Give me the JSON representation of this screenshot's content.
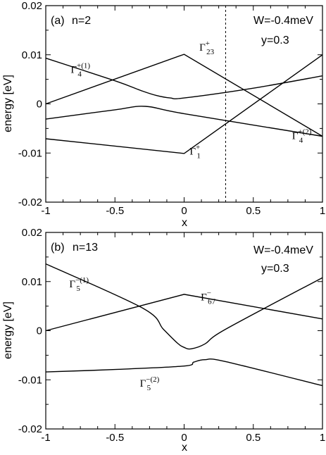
{
  "chart_data": [
    {
      "type": "line",
      "panel_label": "(a)",
      "n_label": "n=2",
      "params": [
        "W=-0.4meV",
        "y=0.3"
      ],
      "xlabel": "x",
      "ylabel": "energy [eV]",
      "xlim": [
        -1,
        1
      ],
      "ylim": [
        -0.02,
        0.02
      ],
      "xticks": [
        -1,
        -0.5,
        0,
        0.5,
        1
      ],
      "xtick_labels": [
        "-1",
        "-0.5",
        "0",
        "0.5",
        "1"
      ],
      "yticks": [
        -0.02,
        -0.01,
        0,
        0.01,
        0.02
      ],
      "ytick_labels": [
        "-0.02",
        "-0.01",
        "0",
        "0.01",
        "0.02"
      ],
      "vline_x": 0.3,
      "series": [
        {
          "x": [
            -1,
            0,
            1
          ],
          "y": [
            0.0,
            0.0101,
            -0.0066
          ]
        },
        {
          "x": [
            -1,
            -0.5,
            -0.28,
            0,
            1
          ],
          "y": [
            -0.0031,
            -0.0012,
            -0.0005,
            -0.002,
            -0.0066
          ]
        },
        {
          "x": [
            -1,
            0,
            1
          ],
          "y": [
            -0.0071,
            -0.0101,
            0.01
          ]
        },
        {
          "x": [
            -1,
            -0.5,
            -0.3,
            -0.2,
            -0.1,
            0,
            0.5,
            1
          ],
          "y": [
            0.0093,
            0.0047,
            0.0026,
            0.0017,
            0.0012,
            0.0012,
            0.0032,
            0.0057
          ]
        }
      ],
      "labels": [
        {
          "text": "Γ",
          "sup": "+(1)",
          "sub": "4",
          "x": -0.82,
          "y": 0.0063
        },
        {
          "text": "Γ",
          "sup": "+",
          "sub": "23",
          "x": 0.11,
          "y": 0.0108
        },
        {
          "text": "Γ",
          "sup": "+(2)",
          "sub": "4",
          "x": 0.78,
          "y": -0.0072
        },
        {
          "text": "Γ",
          "sup": "+",
          "sub": "1",
          "x": 0.04,
          "y": -0.0103
        }
      ]
    },
    {
      "type": "line",
      "panel_label": "(b)",
      "n_label": "n=13",
      "params": [
        "W=-0.4meV",
        "y=0.3"
      ],
      "xlabel": "x",
      "ylabel": "energy [eV]",
      "xlim": [
        -1,
        1
      ],
      "ylim": [
        -0.02,
        0.02
      ],
      "xticks": [
        -1,
        -0.5,
        0,
        0.5,
        1
      ],
      "xtick_labels": [
        "-1",
        "-0.5",
        "0",
        "0.5",
        "1"
      ],
      "yticks": [
        -0.02,
        -0.01,
        0,
        0.01,
        0.02
      ],
      "ytick_labels": [
        "-0.02",
        "-0.01",
        "0",
        "0.01",
        "0.02"
      ],
      "series": [
        {
          "x": [
            -1,
            0,
            1
          ],
          "y": [
            0.0,
            0.0074,
            0.0024
          ]
        },
        {
          "x": [
            -1,
            -0.3,
            -0.15,
            -0.05,
            0,
            0.05,
            0.15,
            0.3,
            1
          ],
          "y": [
            0.0136,
            0.0046,
            0.0003,
            -0.0025,
            -0.0034,
            -0.0037,
            -0.0027,
            0.0003,
            0.0108
          ]
        },
        {
          "x": [
            -1,
            -0.5,
            0,
            0.07,
            0.15,
            0.3,
            1
          ],
          "y": [
            -0.0084,
            -0.0079,
            -0.0072,
            -0.0064,
            -0.0059,
            -0.0063,
            -0.0112
          ]
        }
      ],
      "labels": [
        {
          "text": "Γ",
          "sup": "−(1)",
          "sub": "5",
          "x": -0.83,
          "y": 0.0088
        },
        {
          "text": "Γ",
          "sup": "−",
          "sub": "67",
          "x": 0.12,
          "y": 0.0062
        },
        {
          "text": "Γ",
          "sup": "−(2)",
          "sub": "5",
          "x": -0.32,
          "y": -0.0114
        }
      ]
    }
  ]
}
